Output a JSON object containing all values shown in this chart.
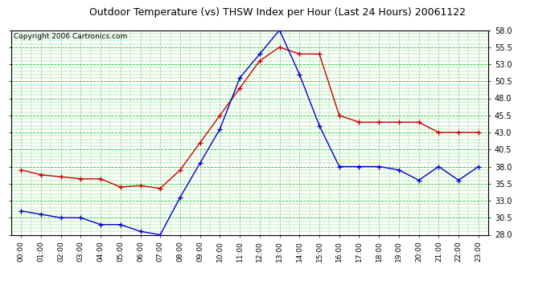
{
  "title": "Outdoor Temperature (vs) THSW Index per Hour (Last 24 Hours) 20061122",
  "copyright": "Copyright 2006 Cartronics.com",
  "hours": [
    "00:00",
    "01:00",
    "02:00",
    "03:00",
    "04:00",
    "05:00",
    "06:00",
    "07:00",
    "08:00",
    "09:00",
    "10:00",
    "11:00",
    "12:00",
    "13:00",
    "14:00",
    "15:00",
    "16:00",
    "17:00",
    "18:00",
    "19:00",
    "20:00",
    "21:00",
    "22:00",
    "23:00"
  ],
  "temp_red": [
    37.5,
    36.8,
    36.5,
    36.2,
    36.2,
    35.0,
    35.2,
    34.8,
    37.5,
    41.5,
    45.5,
    49.5,
    53.5,
    55.5,
    54.5,
    54.5,
    45.5,
    44.5,
    44.5,
    44.5,
    44.5,
    43.0,
    43.0,
    43.0
  ],
  "thsw_blue": [
    31.5,
    31.0,
    30.5,
    30.5,
    29.5,
    29.5,
    28.5,
    28.0,
    33.5,
    38.5,
    43.5,
    51.0,
    54.5,
    58.0,
    51.5,
    44.0,
    38.0,
    38.0,
    38.0,
    37.5,
    36.0,
    38.0,
    36.0,
    38.0
  ],
  "ylim": [
    28.0,
    58.0
  ],
  "yticks": [
    28.0,
    30.5,
    33.0,
    35.5,
    38.0,
    40.5,
    43.0,
    45.5,
    48.0,
    50.5,
    53.0,
    55.5,
    58.0
  ],
  "red_color": "#cc0000",
  "blue_color": "#0000cc",
  "background_color": "#ffffff",
  "plot_bg_color": "#ffffff",
  "grid_v_color": "#aaaaaa",
  "grid_h_color": "#00cc00",
  "title_fontsize": 9,
  "copyright_fontsize": 6.5
}
